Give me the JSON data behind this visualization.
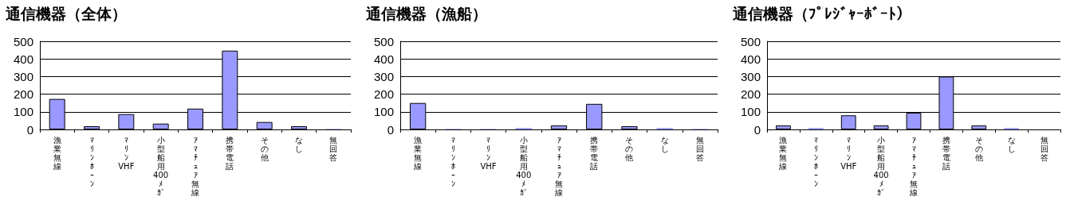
{
  "chart_data": [
    {
      "type": "bar",
      "title": "通信機器（全体）",
      "categories": [
        "漁業無線",
        "ﾏﾘﾝﾎｰﾝ",
        "ﾏﾘﾝVHF",
        "小型船用400ﾒｶﾞ",
        "ｱﾏﾁｭｱ無線",
        "携帯電話",
        "その他",
        "なし",
        "無回答"
      ],
      "values": [
        173,
        18,
        87,
        33,
        118,
        447,
        42,
        18,
        3
      ],
      "color": "#9999ff",
      "ylim": [
        0,
        500
      ],
      "yticks": [
        0,
        100,
        200,
        300,
        400,
        500
      ],
      "grid": "y"
    },
    {
      "type": "bar",
      "title": "通信機器（漁船）",
      "categories": [
        "漁業無線",
        "ﾏﾘﾝﾎｰﾝ",
        "ﾏﾘﾝVHF",
        "小型船用400ﾒｶﾞ",
        "ｱﾏﾁｭｱ無線",
        "携帯電話",
        "その他",
        "なし",
        "無回答"
      ],
      "values": [
        150,
        3,
        3,
        8,
        23,
        145,
        18,
        8,
        3
      ],
      "color": "#9999ff",
      "ylim": [
        0,
        500
      ],
      "yticks": [
        0,
        100,
        200,
        300,
        400,
        500
      ],
      "grid": "y"
    },
    {
      "type": "bar",
      "title": "通信機器（ﾌﾟﾚｼﾞｬｰﾎﾞｰﾄ）",
      "categories": [
        "漁業無線",
        "ﾏﾘﾝﾎｰﾝ",
        "ﾏﾘﾝVHF",
        "小型船用400ﾒｶﾞ",
        "ｱﾏﾁｭｱ無線",
        "携帯電話",
        "その他",
        "なし",
        "無回答"
      ],
      "values": [
        23,
        8,
        80,
        23,
        95,
        300,
        23,
        8,
        0
      ],
      "color": "#9999ff",
      "ylim": [
        0,
        500
      ],
      "yticks": [
        0,
        100,
        200,
        300,
        400,
        500
      ],
      "grid": "y"
    }
  ]
}
